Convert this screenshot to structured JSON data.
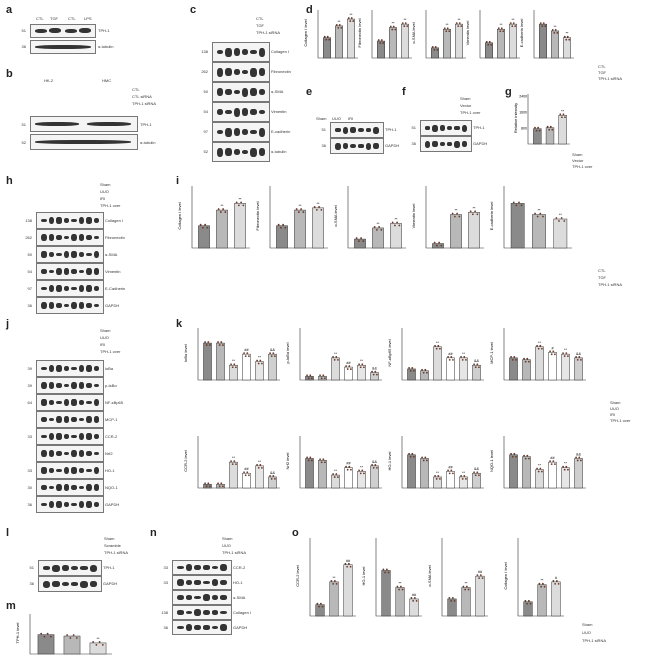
{
  "figure": {
    "panels": {
      "a": {
        "letter": "a",
        "lanes": [
          "CTL",
          "TGF",
          "CTL",
          "LPS"
        ],
        "blots": [
          {
            "mw": "51",
            "label": "TPH-1"
          },
          {
            "mw": "36",
            "label": "α-tubulin"
          }
        ]
      },
      "b": {
        "letter": "b",
        "groups": [
          "HK-2",
          "HMC"
        ],
        "conditions": [
          "CTL",
          "CTL siRNA",
          "TPH-1 siRNA"
        ],
        "blots": [
          {
            "mw": "51",
            "label": "TPH-1"
          },
          {
            "mw": "52",
            "label": "α-tubulin"
          }
        ]
      },
      "c": {
        "letter": "c",
        "conditions": [
          "CTL",
          "TGF",
          "TPH-1 siRNA"
        ],
        "blots": [
          {
            "mw": "138",
            "label": "Collagen I"
          },
          {
            "mw": "262",
            "label": "Fibronectin"
          },
          {
            "mw": "50",
            "label": "α-SMA"
          },
          {
            "mw": "54",
            "label": "Vimentin"
          },
          {
            "mw": "97",
            "label": "E-cadherin"
          },
          {
            "mw": "52",
            "label": "α-tubulin"
          }
        ]
      },
      "d": {
        "letter": "d",
        "conditions": [
          "CTL",
          "TGF",
          "TPH-1 siRNA"
        ]
      },
      "e": {
        "letter": "e",
        "lanes": [
          "Sham",
          "UUO",
          "IRI"
        ],
        "blots": [
          {
            "mw": "51",
            "label": "TPH-1"
          },
          {
            "mw": "36",
            "label": "GAPDH"
          }
        ]
      },
      "f": {
        "letter": "f",
        "conditions": [
          "Sham",
          "Vector",
          "TPH-1 over"
        ],
        "blots": [
          {
            "mw": "51",
            "label": "TPH-1"
          },
          {
            "mw": "36",
            "label": "GAPDH"
          }
        ]
      },
      "g": {
        "letter": "g",
        "conditions": [
          "Sham",
          "Vector",
          "TPH-1 over"
        ]
      },
      "h": {
        "letter": "h",
        "conditions": [
          "Sham",
          "UUO",
          "IRI",
          "TPH-1 over"
        ],
        "blots": [
          {
            "mw": "138",
            "label": "Collagen I"
          },
          {
            "mw": "262",
            "label": "Fibronectin"
          },
          {
            "mw": "50",
            "label": "α-SMA"
          },
          {
            "mw": "54",
            "label": "Vimentin"
          },
          {
            "mw": "97",
            "label": "E-Cadherin"
          },
          {
            "mw": "36",
            "label": "GAPDH"
          }
        ]
      },
      "i": {
        "letter": "i",
        "conditions": [
          "CTL",
          "TGF",
          "TPH-1 siRNA"
        ]
      },
      "j": {
        "letter": "j",
        "conditions": [
          "Sham",
          "UUO",
          "IRI",
          "TPH-1 over"
        ],
        "blots": [
          {
            "mw": "39",
            "label": "IκBα"
          },
          {
            "mw": "39",
            "label": "p-IκBα"
          },
          {
            "mw": "64",
            "label": "NF-κBp65"
          },
          {
            "mw": "",
            "label": "MCP-1"
          },
          {
            "mw": "33",
            "label": "CCR-2"
          },
          {
            "mw": "",
            "label": "Nrf2"
          },
          {
            "mw": "33",
            "label": "HO-1"
          },
          {
            "mw": "30",
            "label": "NQO-1"
          },
          {
            "mw": "36",
            "label": "GAPDH"
          }
        ]
      },
      "k": {
        "letter": "k",
        "conditions": [
          "Sham",
          "UUO",
          "IRI",
          "TPH-1 over"
        ]
      },
      "l": {
        "letter": "l",
        "conditions": [
          "Sham",
          "Scramble",
          "TPH-1 siRNA"
        ],
        "blots": [
          {
            "mw": "51",
            "label": "TPH-1"
          },
          {
            "mw": "36",
            "label": "GAPDH"
          }
        ]
      },
      "m": {
        "letter": "m"
      },
      "n": {
        "letter": "n",
        "conditions": [
          "Sham",
          "UUO",
          "TPH-1 siRNA"
        ],
        "blots": [
          {
            "mw": "33",
            "label": "CCR-2"
          },
          {
            "mw": "33",
            "label": "HO-1"
          },
          {
            "mw": "",
            "label": "α-SMA"
          },
          {
            "mw": "138",
            "label": "Collagen I"
          },
          {
            "mw": "36",
            "label": "GAPDH"
          }
        ]
      },
      "o": {
        "letter": "o",
        "conditions": [
          "Sham",
          "UUO",
          "TPH-1 siRNA"
        ]
      }
    }
  },
  "chart_data": [
    {
      "id": "d1",
      "type": "bar",
      "ylabel": "Collagen I level",
      "values": [
        0.6,
        0.95,
        1.15
      ],
      "sig": [
        "",
        "**",
        "**"
      ]
    },
    {
      "id": "d2",
      "type": "bar",
      "ylabel": "Fibronectin level",
      "values": [
        0.5,
        0.9,
        1.0
      ],
      "sig": [
        "",
        "**",
        "**"
      ]
    },
    {
      "id": "d3",
      "type": "bar",
      "ylabel": "α-SMA level",
      "values": [
        0.3,
        0.85,
        1.0
      ],
      "sig": [
        "",
        "**",
        "**"
      ]
    },
    {
      "id": "d4",
      "type": "bar",
      "ylabel": "Vimentin level",
      "values": [
        0.45,
        0.85,
        1.0
      ],
      "sig": [
        "",
        "**",
        "**"
      ]
    },
    {
      "id": "d5",
      "type": "bar",
      "ylabel": "E-cadherin level",
      "values": [
        1.0,
        0.8,
        0.6
      ],
      "sig": [
        "",
        "**",
        "**"
      ]
    },
    {
      "id": "g1",
      "type": "bar",
      "ylabel": "Relative intensity",
      "values": [
        800,
        850,
        1500
      ],
      "ylim": [
        0,
        2400
      ],
      "yticks": [
        "800",
        "1600",
        "2400"
      ],
      "sig": [
        "",
        "",
        "**"
      ]
    },
    {
      "id": "i1",
      "type": "bar",
      "ylabel": "Collagen I level",
      "values": [
        0.5,
        0.85,
        1.0
      ],
      "sig": [
        "",
        "**",
        "**"
      ]
    },
    {
      "id": "i2",
      "type": "bar",
      "ylabel": "Fibronectin level",
      "values": [
        0.5,
        0.85,
        0.9
      ],
      "sig": [
        "",
        "**",
        "**"
      ]
    },
    {
      "id": "i3",
      "type": "bar",
      "ylabel": "α-SMA level",
      "values": [
        0.2,
        0.45,
        0.55
      ],
      "sig": [
        "",
        "**",
        "**"
      ]
    },
    {
      "id": "i4",
      "type": "bar",
      "ylabel": "Vimentin level",
      "values": [
        0.1,
        0.75,
        0.8
      ],
      "sig": [
        "",
        "**",
        "**"
      ]
    },
    {
      "id": "i5",
      "type": "bar",
      "ylabel": "E-cadherin level",
      "values": [
        1.0,
        0.75,
        0.65
      ],
      "sig": [
        "",
        "**",
        "**"
      ]
    },
    {
      "id": "k1",
      "type": "bar",
      "ylabel": "IκBα level",
      "values": [
        1.0,
        1.0,
        0.4,
        0.7,
        0.5,
        0.7
      ],
      "sig": [
        "",
        "",
        "**",
        "##",
        "**",
        "&&"
      ]
    },
    {
      "id": "k2",
      "type": "bar",
      "ylabel": "p-IκBα level",
      "values": [
        0.1,
        0.1,
        0.6,
        0.35,
        0.4,
        0.2
      ],
      "sig": [
        "",
        "",
        "**",
        "##",
        "**",
        "&&"
      ]
    },
    {
      "id": "k3",
      "type": "bar",
      "ylabel": "NF-κBp65 level",
      "values": [
        0.3,
        0.25,
        0.9,
        0.6,
        0.6,
        0.4
      ],
      "sig": [
        "",
        "",
        "**",
        "##",
        "**",
        "&&"
      ]
    },
    {
      "id": "k4",
      "type": "bar",
      "ylabel": "MCP-1 level",
      "values": [
        0.6,
        0.55,
        0.9,
        0.75,
        0.7,
        0.6
      ],
      "sig": [
        "",
        "",
        "**",
        "#",
        "**",
        "&&"
      ]
    },
    {
      "id": "k5",
      "type": "bar",
      "ylabel": "CCR-2 level",
      "values": [
        0.1,
        0.1,
        0.7,
        0.4,
        0.6,
        0.3
      ],
      "sig": [
        "",
        "",
        "**",
        "##",
        "**",
        "&&"
      ]
    },
    {
      "id": "k6",
      "type": "bar",
      "ylabel": "Nrf2 level",
      "values": [
        0.8,
        0.75,
        0.35,
        0.55,
        0.45,
        0.6
      ],
      "sig": [
        "",
        "",
        "**",
        "##",
        "**",
        "&&"
      ]
    },
    {
      "id": "k7",
      "type": "bar",
      "ylabel": "HO-1 level",
      "values": [
        0.9,
        0.8,
        0.3,
        0.45,
        0.3,
        0.4
      ],
      "sig": [
        "",
        "",
        "**",
        "##",
        "**",
        "&&"
      ]
    },
    {
      "id": "k8",
      "type": "bar",
      "ylabel": "NQO-1 level",
      "values": [
        0.9,
        0.85,
        0.5,
        0.7,
        0.55,
        0.8
      ],
      "sig": [
        "",
        "",
        "**",
        "##",
        "**",
        "&&"
      ]
    },
    {
      "id": "m1",
      "type": "bar",
      "ylabel": "TPH-1 level",
      "values": [
        0.7,
        0.65,
        0.4
      ],
      "sig": [
        "",
        "",
        "**"
      ]
    },
    {
      "id": "o1",
      "type": "bar",
      "ylabel": "CCR-2 level",
      "values": [
        0.2,
        0.6,
        0.9
      ],
      "sig": [
        "",
        "**",
        "##"
      ]
    },
    {
      "id": "o2",
      "type": "bar",
      "ylabel": "HO-1 level",
      "values": [
        0.8,
        0.5,
        0.3
      ],
      "sig": [
        "",
        "**",
        "##"
      ]
    },
    {
      "id": "o3",
      "type": "bar",
      "ylabel": "α-SMA level",
      "values": [
        0.3,
        0.5,
        0.7
      ],
      "sig": [
        "",
        "**",
        "##"
      ]
    },
    {
      "id": "o4",
      "type": "bar",
      "ylabel": "Collagen I level",
      "values": [
        0.25,
        0.55,
        0.6
      ],
      "sig": [
        "",
        "**",
        "#"
      ]
    }
  ]
}
